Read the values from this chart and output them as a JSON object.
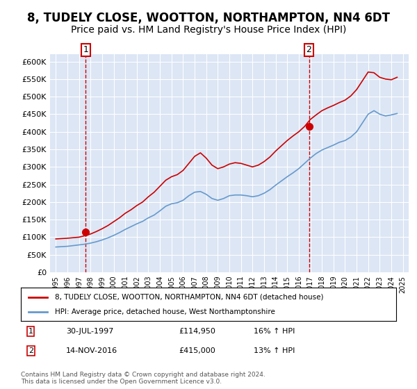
{
  "title": "8, TUDELY CLOSE, WOOTTON, NORTHAMPTON, NN4 6DT",
  "subtitle": "Price paid vs. HM Land Registry's House Price Index (HPI)",
  "title_fontsize": 12,
  "subtitle_fontsize": 10,
  "background_color": "#dce6f5",
  "plot_bg_color": "#dce6f5",
  "fig_bg_color": "#ffffff",
  "ylim": [
    0,
    620000
  ],
  "yticks": [
    0,
    50000,
    100000,
    150000,
    200000,
    250000,
    300000,
    350000,
    400000,
    450000,
    500000,
    550000,
    600000
  ],
  "ytick_labels": [
    "£0",
    "£50K",
    "£100K",
    "£150K",
    "£200K",
    "£250K",
    "£300K",
    "£350K",
    "£400K",
    "£450K",
    "£500K",
    "£550K",
    "£600K"
  ],
  "xlabel_years": [
    "1995",
    "1996",
    "1997",
    "1998",
    "1999",
    "2000",
    "2001",
    "2002",
    "2003",
    "2004",
    "2005",
    "2006",
    "2007",
    "2008",
    "2009",
    "2010",
    "2011",
    "2012",
    "2013",
    "2014",
    "2015",
    "2016",
    "2017",
    "2018",
    "2019",
    "2020",
    "2021",
    "2022",
    "2023",
    "2024",
    "2025"
  ],
  "hpi_years": [
    1995,
    1995.5,
    1996,
    1996.5,
    1997,
    1997.5,
    1998,
    1998.5,
    1999,
    1999.5,
    2000,
    2000.5,
    2001,
    2001.5,
    2002,
    2002.5,
    2003,
    2003.5,
    2004,
    2004.5,
    2005,
    2005.5,
    2006,
    2006.5,
    2007,
    2007.5,
    2008,
    2008.5,
    2009,
    2009.5,
    2010,
    2010.5,
    2011,
    2011.5,
    2012,
    2012.5,
    2013,
    2013.5,
    2014,
    2014.5,
    2015,
    2015.5,
    2016,
    2016.5,
    2017,
    2017.5,
    2018,
    2018.5,
    2019,
    2019.5,
    2020,
    2020.5,
    2021,
    2021.5,
    2022,
    2022.5,
    2023,
    2023.5,
    2024,
    2024.5
  ],
  "hpi_values": [
    72000,
    73000,
    74000,
    76000,
    78000,
    80000,
    83000,
    87000,
    92000,
    98000,
    105000,
    113000,
    122000,
    130000,
    138000,
    145000,
    155000,
    163000,
    175000,
    188000,
    195000,
    198000,
    205000,
    218000,
    228000,
    230000,
    222000,
    210000,
    205000,
    210000,
    218000,
    220000,
    220000,
    218000,
    215000,
    218000,
    225000,
    235000,
    248000,
    260000,
    272000,
    283000,
    295000,
    310000,
    325000,
    338000,
    348000,
    355000,
    362000,
    370000,
    375000,
    385000,
    400000,
    425000,
    450000,
    460000,
    450000,
    445000,
    448000,
    452000
  ],
  "red_years": [
    1995,
    1995.5,
    1996,
    1996.5,
    1997,
    1997.5,
    1998,
    1998.5,
    1999,
    1999.5,
    2000,
    2000.5,
    2001,
    2001.5,
    2002,
    2002.5,
    2003,
    2003.5,
    2004,
    2004.5,
    2005,
    2005.5,
    2006,
    2006.5,
    2007,
    2007.5,
    2008,
    2008.5,
    2009,
    2009.5,
    2010,
    2010.5,
    2011,
    2011.5,
    2012,
    2012.5,
    2013,
    2013.5,
    2014,
    2014.5,
    2015,
    2015.5,
    2016,
    2016.5,
    2017,
    2017.5,
    2018,
    2018.5,
    2019,
    2019.5,
    2020,
    2020.5,
    2021,
    2021.5,
    2022,
    2022.5,
    2023,
    2023.5,
    2024,
    2024.5
  ],
  "red_values": [
    95000,
    96000,
    97000,
    98500,
    100000,
    104000,
    109000,
    116000,
    124000,
    133000,
    144000,
    155000,
    168000,
    178000,
    190000,
    200000,
    215000,
    228000,
    245000,
    262000,
    272000,
    278000,
    290000,
    310000,
    330000,
    340000,
    325000,
    305000,
    295000,
    300000,
    308000,
    312000,
    310000,
    305000,
    300000,
    305000,
    315000,
    328000,
    345000,
    360000,
    375000,
    388000,
    400000,
    415000,
    435000,
    448000,
    460000,
    468000,
    475000,
    483000,
    490000,
    502000,
    520000,
    545000,
    570000,
    568000,
    555000,
    550000,
    548000,
    555000
  ],
  "sale1_x": 1997.58,
  "sale1_y": 114950,
  "sale2_x": 2016.88,
  "sale2_y": 415000,
  "sale1_label": "1",
  "sale2_label": "2",
  "sale1_date": "30-JUL-1997",
  "sale1_price": "£114,950",
  "sale1_hpi": "16% ↑ HPI",
  "sale2_date": "14-NOV-2016",
  "sale2_price": "£415,000",
  "sale2_hpi": "13% ↑ HPI",
  "legend1_label": "8, TUDELY CLOSE, WOOTTON, NORTHAMPTON, NN4 6DT (detached house)",
  "legend2_label": "HPI: Average price, detached house, West Northamptonshire",
  "red_color": "#cc0000",
  "blue_color": "#6699cc",
  "dashed_color": "#cc0000",
  "copyright": "Contains HM Land Registry data © Crown copyright and database right 2024.\nThis data is licensed under the Open Government Licence v3.0.",
  "xlim": [
    1994.5,
    2025.5
  ]
}
